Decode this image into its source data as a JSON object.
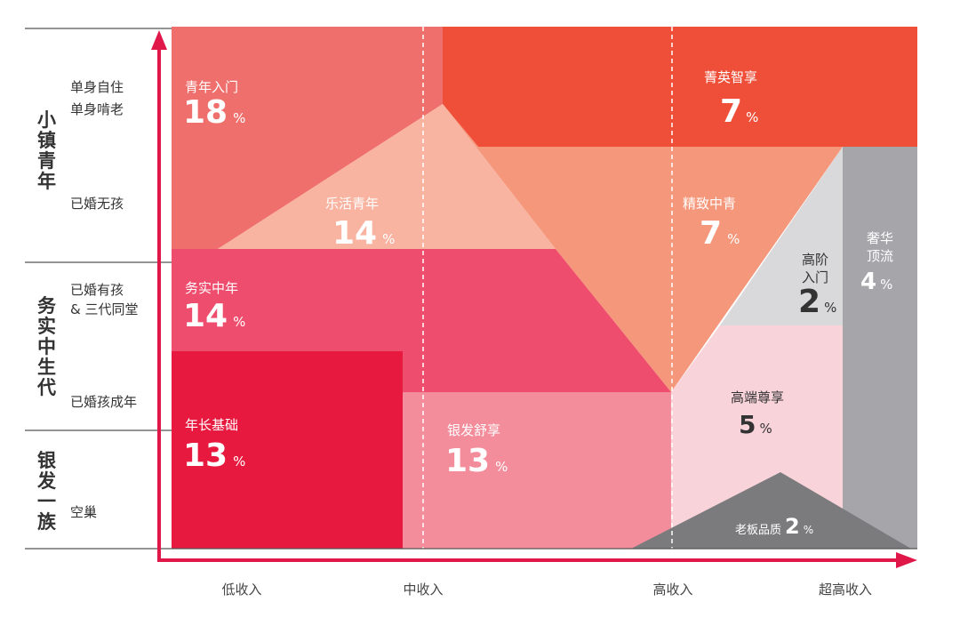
{
  "colors": {
    "axis": "#e0184a",
    "guide": "#ffffff",
    "rule": "#555555",
    "text": "#333333"
  },
  "groups": [
    {
      "id": "xiaozhen",
      "label": "小镇青年",
      "rows": [
        "单身自住",
        "单身啃老",
        "已婚无孩"
      ]
    },
    {
      "id": "wushi",
      "label": "务实中生代",
      "rows": [
        "已婚有孩",
        "& 三代同堂",
        "已婚孩成年"
      ]
    },
    {
      "id": "yinfa",
      "label": "银发一族",
      "rows": [
        "空巢"
      ]
    }
  ],
  "x_axis": [
    "低收入",
    "中收入",
    "高收入",
    "超高收入"
  ],
  "segments": [
    {
      "id": "qingnian-rumen",
      "name": "青年入门",
      "value": "18",
      "unit": "%",
      "color": "#ef6f6c"
    },
    {
      "id": "jingying-zhixiang",
      "name": "菁英智享",
      "value": "7",
      "unit": "%",
      "color": "#ef4f38"
    },
    {
      "id": "lehuo-qingnian",
      "name": "乐活青年",
      "value": "14",
      "unit": "%",
      "color": "#f8b4a1"
    },
    {
      "id": "jingzhi-zhongqing",
      "name": "精致中青",
      "value": "7",
      "unit": "%",
      "color": "#f5977a"
    },
    {
      "id": "gaojie-rumen",
      "name_lines": [
        "高阶",
        "入门"
      ],
      "value": "2",
      "unit": "%",
      "color": "#d9d9db"
    },
    {
      "id": "shehua-dingliu",
      "name_lines": [
        "奢华",
        "顶流"
      ],
      "value": "4",
      "unit": "%",
      "color": "#a6a6aa"
    },
    {
      "id": "wushi-zhongnian",
      "name": "务实中年",
      "value": "14",
      "unit": "%",
      "color": "#ee4d6d"
    },
    {
      "id": "nianzhang-jichu",
      "name": "年长基础",
      "value": "13",
      "unit": "%",
      "color": "#e8193f"
    },
    {
      "id": "yinfa-shuxiang",
      "name": "银发舒享",
      "value": "13",
      "unit": "%",
      "color": "#f38c9b"
    },
    {
      "id": "gaoduan-zunxiang",
      "name": "高端尊享",
      "value": "5",
      "unit": "%",
      "color": "#f8d3da"
    },
    {
      "id": "laoban-pinzhi",
      "name": "老板品质",
      "value": "2",
      "unit": "%",
      "color": "#7b7b7e"
    }
  ]
}
